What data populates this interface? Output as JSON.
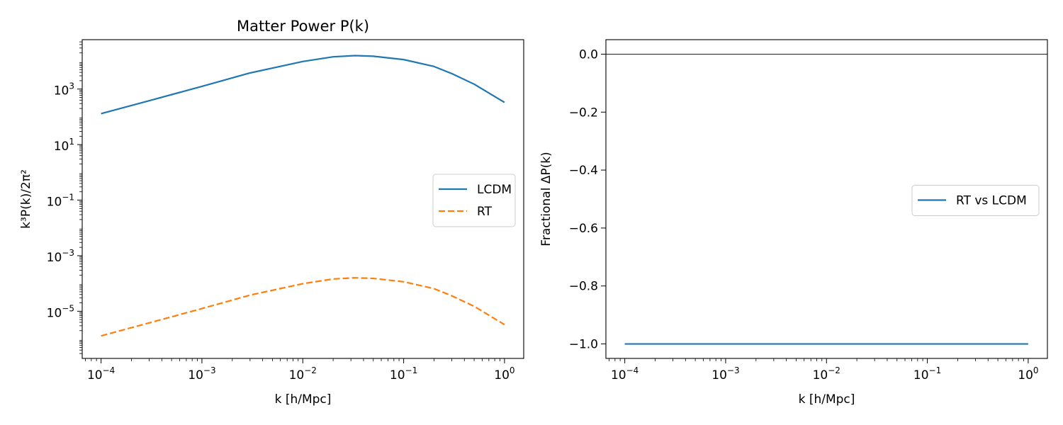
{
  "chart_data": [
    {
      "type": "line",
      "title": "Matter Power P(k)",
      "xlabel": "k [h/Mpc]",
      "ylabel": "k³P(k)/2π²",
      "xscale": "log",
      "yscale": "log",
      "xlim": [
        6.5e-05,
        1.55
      ],
      "ylim": [
        2e-07,
        60000.0
      ],
      "xticks": [
        {
          "value": 0.0001,
          "base": "10",
          "exp": "−4"
        },
        {
          "value": 0.001,
          "base": "10",
          "exp": "−3"
        },
        {
          "value": 0.01,
          "base": "10",
          "exp": "−2"
        },
        {
          "value": 0.1,
          "base": "10",
          "exp": "−1"
        },
        {
          "value": 1,
          "base": "10",
          "exp": "0"
        }
      ],
      "yticks": [
        {
          "value": 1e-05,
          "base": "10",
          "exp": "−5"
        },
        {
          "value": 0.001,
          "base": "10",
          "exp": "−3"
        },
        {
          "value": 0.1,
          "base": "10",
          "exp": "−1"
        },
        {
          "value": 10,
          "base": "10",
          "exp": "1"
        },
        {
          "value": 1000,
          "base": "10",
          "exp": "3"
        }
      ],
      "grid": false,
      "legend": "center-right",
      "series": [
        {
          "name": "LCDM",
          "color": "#1f77b4",
          "style": "solid",
          "x": [
            0.0001,
            0.0003,
            0.001,
            0.003,
            0.01,
            0.02,
            0.033,
            0.05,
            0.1,
            0.2,
            0.3,
            0.5,
            1.0
          ],
          "y": [
            130,
            380,
            1250,
            3800,
            9800,
            14500,
            16000,
            15200,
            11500,
            6500,
            3600,
            1500,
            330
          ]
        },
        {
          "name": "RT",
          "color": "#ff7f0e",
          "style": "dashed",
          "x": [
            0.0001,
            0.0003,
            0.001,
            0.003,
            0.01,
            0.02,
            0.033,
            0.05,
            0.1,
            0.2,
            0.3,
            0.5,
            1.0
          ],
          "y": [
            1.3e-06,
            3.8e-06,
            1.25e-05,
            3.8e-05,
            9.8e-05,
            0.000145,
            0.00016,
            0.000152,
            0.000115,
            6.5e-05,
            3.6e-05,
            1.5e-05,
            3.3e-06
          ]
        }
      ]
    },
    {
      "type": "line",
      "title": "",
      "xlabel": "k [h/Mpc]",
      "ylabel": "Fractional ΔP(k)",
      "xscale": "log",
      "yscale": "linear",
      "xlim": [
        6.5e-05,
        1.55
      ],
      "ylim": [
        -1.05,
        0.05
      ],
      "xticks": [
        {
          "value": 0.0001,
          "base": "10",
          "exp": "−4"
        },
        {
          "value": 0.001,
          "base": "10",
          "exp": "−3"
        },
        {
          "value": 0.01,
          "base": "10",
          "exp": "−2"
        },
        {
          "value": 0.1,
          "base": "10",
          "exp": "−1"
        },
        {
          "value": 1,
          "base": "10",
          "exp": "0"
        }
      ],
      "yticks": [
        {
          "value": 0.0,
          "label": "0.0"
        },
        {
          "value": -0.2,
          "label": "−0.2"
        },
        {
          "value": -0.4,
          "label": "−0.4"
        },
        {
          "value": -0.6,
          "label": "−0.6"
        },
        {
          "value": -0.8,
          "label": "−0.8"
        },
        {
          "value": -1.0,
          "label": "−1.0"
        }
      ],
      "hline": 0.0,
      "grid": false,
      "legend": "center-right",
      "series": [
        {
          "name": "RT vs LCDM",
          "color": "#1f77b4",
          "style": "solid",
          "x": [
            0.0001,
            1.0
          ],
          "y": [
            -1.0,
            -1.0
          ]
        }
      ]
    }
  ]
}
